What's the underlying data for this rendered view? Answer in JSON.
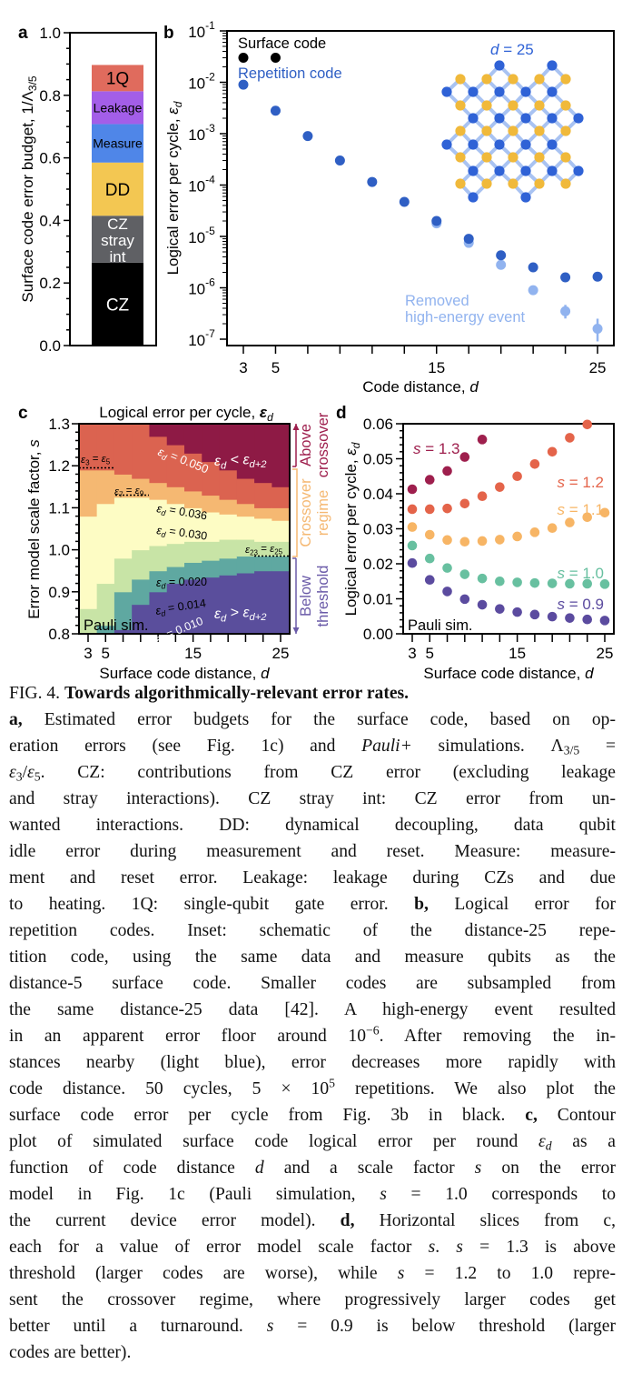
{
  "panel_a": {
    "letter": "a",
    "ylabel": "Surface code error budget, 1/Λ",
    "ylabel_sub": "3/5",
    "yticks": [
      "0.0",
      "0.2",
      "0.4",
      "0.6",
      "0.8",
      "1.0"
    ],
    "segments": [
      {
        "label": [
          "CZ"
        ],
        "from": 0.0,
        "to": 0.265,
        "color": "#000000",
        "text_color": "#ffffff"
      },
      {
        "label": [
          "CZ",
          "stray",
          "int"
        ],
        "from": 0.265,
        "to": 0.415,
        "color": "#5f6064",
        "text_color": "#ffffff"
      },
      {
        "label": [
          "DD"
        ],
        "from": 0.415,
        "to": 0.585,
        "color": "#f3c752",
        "text_color": "#000000"
      },
      {
        "label": [
          "Measure"
        ],
        "from": 0.585,
        "to": 0.708,
        "color": "#4f86e8",
        "text_color": "#000000"
      },
      {
        "label": [
          "Leakage"
        ],
        "from": 0.708,
        "to": 0.813,
        "color": "#a35ee8",
        "text_color": "#000000"
      },
      {
        "label": [
          "1Q"
        ],
        "from": 0.813,
        "to": 0.897,
        "color": "#e06b5d",
        "text_color": "#000000"
      }
    ]
  },
  "panel_b": {
    "letter": "b",
    "ylabel": "Logical error per cycle, ",
    "ylabel_sym": "ε",
    "ylabel_sub": "d",
    "xlabel": "Code distance, ",
    "xlabel_sym": "d",
    "ytick_base": "10",
    "ytick_exps": [
      "-1",
      "-2",
      "-3",
      "-4",
      "-5",
      "-6",
      "-7"
    ],
    "xtick_labels": [
      "3",
      "5",
      "15",
      "25"
    ],
    "legend_surface": "Surface code",
    "legend_repetition": "Repetition code",
    "inset_label_sym": "d",
    "inset_label": " = 25",
    "removed_label": [
      "Removed",
      "high-energy event"
    ],
    "colors": {
      "surface": "#000000",
      "repetition": "#2f5fc4",
      "removed": "#91b3ef",
      "inset_data": "#2f62d6",
      "inset_measure": "#f0b93b",
      "inset_link": "#a9c3f2"
    }
  },
  "panel_c": {
    "letter": "c",
    "title": "Logical error per cycle, ",
    "title_sym": "ε",
    "title_sub": "d",
    "ylabel": "Error model scale factor, ",
    "ylabel_sym": "s",
    "xlabel": "Surface code distance, ",
    "xlabel_sym": "d",
    "yticks": [
      "0.8",
      "0.9",
      "1.0",
      "1.1",
      "1.2",
      "1.3"
    ],
    "xtick_labels": [
      "3",
      "5",
      "15",
      "25"
    ],
    "labels": {
      "eq050": [
        [
          "ε",
          "i"
        ],
        [
          "d",
          "isub"
        ],
        [
          " = 0.050",
          ""
        ]
      ],
      "eq036": [
        [
          "ε",
          "i"
        ],
        [
          "d",
          "isub"
        ],
        [
          " = 0.036",
          ""
        ]
      ],
      "eq030": [
        [
          "ε",
          "i"
        ],
        [
          "d",
          "isub"
        ],
        [
          " = 0.030",
          ""
        ]
      ],
      "eq020": [
        [
          "ε",
          "i"
        ],
        [
          "d",
          "isub"
        ],
        [
          " = 0.020",
          ""
        ]
      ],
      "eq014": [
        [
          "ε",
          "i"
        ],
        [
          "d",
          "isub"
        ],
        [
          " = 0.014",
          ""
        ]
      ],
      "eq010": [
        [
          "ε",
          "i"
        ],
        [
          "d",
          "isub"
        ],
        [
          " = 0.010",
          ""
        ]
      ],
      "e3e5": [
        [
          "ε",
          "i"
        ],
        [
          "3",
          "sub"
        ],
        [
          " = ",
          ""
        ],
        [
          "ε",
          "i"
        ],
        [
          "5",
          "sub"
        ]
      ],
      "e7e9": [
        [
          "ε",
          "i"
        ],
        [
          "7",
          "sub"
        ],
        [
          " = ",
          ""
        ],
        [
          "ε",
          "i"
        ],
        [
          "9",
          "sub"
        ]
      ],
      "e23e25": [
        [
          "ε",
          "i"
        ],
        [
          "23",
          "sub"
        ],
        [
          " = ",
          ""
        ],
        [
          "ε",
          "i"
        ],
        [
          "25",
          "sub"
        ]
      ],
      "lt": [
        [
          "ε",
          "i"
        ],
        [
          "d",
          "isub"
        ],
        [
          " < ",
          ""
        ],
        [
          "ε",
          "i"
        ],
        [
          "d+2",
          "isub"
        ]
      ],
      "gt": [
        [
          "ε",
          "i"
        ],
        [
          "d",
          "isub"
        ],
        [
          " > ",
          ""
        ],
        [
          "ε",
          "i"
        ],
        [
          "d+2",
          "isub"
        ]
      ]
    },
    "pauli": "Pauli sim.",
    "regions": [
      {
        "lines": [
          "Above",
          "crossover"
        ],
        "color": "#9e1f4d"
      },
      {
        "lines": [
          "Crossover",
          "regime"
        ],
        "color": "#f5b872"
      },
      {
        "lines": [
          "Below",
          "threshold"
        ],
        "color": "#6a5aa8"
      }
    ],
    "band_colors": [
      "#5a4e9c",
      "#5fa8a1",
      "#c8e4a6",
      "#fdfcc4",
      "#f5b872",
      "#db6350",
      "#8e1a45"
    ]
  },
  "panel_d": {
    "letter": "d",
    "ylabel": "Logical error per cycle, ",
    "ylabel_sym": "ε",
    "ylabel_sub": "d",
    "xlabel": "Surface code distance, ",
    "xlabel_sym": "d",
    "yticks": [
      "0.00",
      "0.01",
      "0.02",
      "0.03",
      "0.04",
      "0.05",
      "0.06"
    ],
    "xtick_labels": [
      "3",
      "5",
      "15",
      "25"
    ],
    "pauli": "Pauli sim.",
    "series_labels": [
      {
        "sym": "s",
        "text": " = 1.3",
        "color": "#9e1f4d"
      },
      {
        "sym": "s",
        "text": " = 1.2",
        "color": "#e4644a"
      },
      {
        "sym": "s",
        "text": " = 1.1",
        "color": "#f7b565"
      },
      {
        "sym": "s",
        "text": " = 1.0",
        "color": "#68c0a0"
      },
      {
        "sym": "s",
        "text": " = 0.9",
        "color": "#5b4b9f"
      }
    ]
  },
  "chart_data": [
    {
      "panel": "a",
      "type": "bar",
      "stacked": true,
      "ylabel": "Surface code error budget, 1/Λ3/5",
      "ylim": [
        0,
        1.0
      ],
      "categories": [
        "CZ",
        "CZ stray int",
        "DD",
        "Measure",
        "Leakage",
        "1Q"
      ],
      "values": [
        0.265,
        0.15,
        0.17,
        0.123,
        0.105,
        0.084
      ]
    },
    {
      "panel": "b",
      "type": "scatter",
      "yscale": "log",
      "ylim": [
        1e-07,
        0.1
      ],
      "xlabel": "Code distance, d",
      "ylabel": "Logical error per cycle, εd",
      "xticks": [
        3,
        5,
        15,
        25
      ],
      "series": [
        {
          "name": "Surface code",
          "x": [
            3,
            5
          ],
          "y": [
            0.03,
            0.03
          ]
        },
        {
          "name": "Repetition code",
          "x": [
            3,
            5,
            7,
            9,
            11,
            13,
            15,
            17,
            19,
            21,
            23,
            25
          ],
          "y": [
            0.009,
            0.0028,
            0.0009,
            0.0003,
            0.000115,
            4.7e-05,
            2e-05,
            9e-06,
            4.3e-06,
            2.5e-06,
            1.6e-06,
            1.65e-06
          ]
        },
        {
          "name": "Removed high-energy event",
          "x": [
            15,
            17,
            19,
            21,
            23,
            25
          ],
          "y": [
            1.8e-05,
            7.5e-06,
            2.8e-06,
            9e-07,
            3.5e-07,
            1.6e-07
          ]
        }
      ]
    },
    {
      "panel": "c",
      "type": "heatmap",
      "title": "Logical error per cycle, εd",
      "xlabel": "Surface code distance, d",
      "ylabel": "Error model scale factor, s",
      "ylim": [
        0.8,
        1.3
      ],
      "x": [
        3,
        5,
        7,
        9,
        11,
        13,
        15,
        17,
        19,
        21,
        23,
        25
      ],
      "contour_levels": [
        0.01,
        0.014,
        0.02,
        0.03,
        0.036,
        0.05
      ],
      "contour_boundaries_s": [
        [
          0.79,
          0.79,
          0.81,
          0.87,
          0.9,
          0.92,
          0.93,
          0.935,
          0.94,
          0.945,
          0.95,
          0.95
        ],
        [
          0.79,
          0.82,
          0.9,
          0.93,
          0.95,
          0.96,
          0.97,
          0.975,
          0.98,
          0.985,
          0.985,
          0.985
        ],
        [
          0.86,
          0.92,
          0.98,
          1.0,
          1.01,
          1.015,
          1.02,
          1.02,
          1.025,
          1.025,
          1.02,
          1.02
        ],
        [
          1.08,
          1.11,
          1.125,
          1.125,
          1.12,
          1.11,
          1.1,
          1.09,
          1.085,
          1.08,
          1.075,
          1.07
        ],
        [
          1.19,
          1.19,
          1.18,
          1.17,
          1.16,
          1.15,
          1.14,
          1.13,
          1.12,
          1.11,
          1.1,
          1.1
        ],
        [
          1.31,
          1.31,
          1.31,
          1.31,
          1.27,
          1.25,
          1.23,
          1.21,
          1.19,
          1.17,
          1.16,
          1.15
        ]
      ]
    },
    {
      "panel": "d",
      "type": "scatter",
      "ylim": [
        0,
        0.06
      ],
      "xlabel": "Surface code distance, d",
      "ylabel": "Logical error per cycle, εd",
      "xticks": [
        3,
        5,
        15,
        25
      ],
      "series": [
        {
          "name": "s = 1.3",
          "x": [
            3,
            5,
            7,
            9,
            11
          ],
          "y": [
            0.0413,
            0.044,
            0.0465,
            0.0505,
            0.0555
          ]
        },
        {
          "name": "s = 1.2",
          "x": [
            3,
            5,
            7,
            9,
            11,
            13,
            15,
            17,
            19,
            21,
            23
          ],
          "y": [
            0.0356,
            0.0356,
            0.0358,
            0.0372,
            0.0393,
            0.0419,
            0.045,
            0.0485,
            0.052,
            0.056,
            0.0598
          ]
        },
        {
          "name": "s = 1.1",
          "x": [
            3,
            5,
            7,
            9,
            11,
            13,
            15,
            17,
            19,
            21,
            23,
            25
          ],
          "y": [
            0.0305,
            0.0283,
            0.0268,
            0.0263,
            0.0265,
            0.0269,
            0.0278,
            0.029,
            0.0302,
            0.0318,
            0.0333,
            0.0346
          ]
        },
        {
          "name": "s = 1.0",
          "x": [
            3,
            5,
            7,
            9,
            11,
            13,
            15,
            17,
            19,
            21,
            23,
            25
          ],
          "y": [
            0.0252,
            0.0215,
            0.0188,
            0.017,
            0.0158,
            0.015,
            0.0147,
            0.0145,
            0.0144,
            0.0143,
            0.0143,
            0.0142
          ]
        },
        {
          "name": "s = 0.9",
          "x": [
            3,
            5,
            7,
            9,
            11,
            13,
            15,
            17,
            19,
            21,
            23,
            25
          ],
          "y": [
            0.0202,
            0.0154,
            0.0121,
            0.0099,
            0.0083,
            0.0071,
            0.0062,
            0.0055,
            0.0049,
            0.0045,
            0.0041,
            0.0038
          ]
        }
      ]
    }
  ],
  "caption": [
    [
      [
        "FIG. 4.   ",
        ""
      ],
      [
        "Towards algorithmically-relevant error rates.",
        "b"
      ]
    ],
    [
      [
        "a,",
        "b"
      ],
      [
        " Estimated error budgets for the surface code, based on op-",
        ""
      ]
    ],
    [
      [
        "eration errors (see Fig. 1c) and ",
        ""
      ],
      [
        "Pauli+",
        "i"
      ],
      [
        " simulations.  Λ",
        ""
      ],
      [
        "3/5",
        "sub"
      ],
      [
        " =",
        ""
      ]
    ],
    [
      [
        "ε",
        "i"
      ],
      [
        "3",
        "sub"
      ],
      [
        "/",
        ""
      ],
      [
        "ε",
        "i"
      ],
      [
        "5",
        "sub"
      ],
      [
        ".  CZ: contributions from CZ error (excluding leakage",
        ""
      ]
    ],
    [
      [
        "and stray interactions).  CZ stray int:  CZ error from un-",
        ""
      ]
    ],
    [
      [
        "wanted interactions.  DD: dynamical decoupling, data qubit",
        ""
      ]
    ],
    [
      [
        "idle error during measurement and reset. Measure: measure-",
        ""
      ]
    ],
    [
      [
        "ment and reset error.  Leakage: leakage during CZs and due",
        ""
      ]
    ],
    [
      [
        "to heating.  1Q: single-qubit gate error.  ",
        ""
      ],
      [
        "b,",
        "b"
      ],
      [
        " Logical error for",
        ""
      ]
    ],
    [
      [
        "repetition codes.  Inset: schematic of the distance-25 repe-",
        ""
      ]
    ],
    [
      [
        "tition code, using the same data and measure qubits as the",
        ""
      ]
    ],
    [
      [
        "distance-5 surface code.  Smaller codes are subsampled from",
        ""
      ]
    ],
    [
      [
        "the same distance-25 data [42].  A high-energy event resulted",
        ""
      ]
    ],
    [
      [
        "in an apparent error floor around 10",
        ""
      ],
      [
        "−6",
        "sup"
      ],
      [
        ". After removing the in-",
        ""
      ]
    ],
    [
      [
        "stances nearby (light blue), error decreases more rapidly with",
        ""
      ]
    ],
    [
      [
        "code distance.  50 cycles, 5 × 10",
        ""
      ],
      [
        "5",
        "sup"
      ],
      [
        " repetitions. We also plot the",
        ""
      ]
    ],
    [
      [
        "surface code error per cycle from Fig. 3b in black.  ",
        ""
      ],
      [
        "c,",
        "b"
      ],
      [
        " Contour",
        ""
      ]
    ],
    [
      [
        "plot of simulated surface code logical error per round ",
        ""
      ],
      [
        "ε",
        "i"
      ],
      [
        "d",
        "isub"
      ],
      [
        " as a",
        ""
      ]
    ],
    [
      [
        "function of code distance ",
        ""
      ],
      [
        "d",
        "i"
      ],
      [
        " and a scale factor ",
        ""
      ],
      [
        "s",
        "i"
      ],
      [
        " on the error",
        ""
      ]
    ],
    [
      [
        "model in Fig. 1c (Pauli simulation, ",
        ""
      ],
      [
        "s",
        "i"
      ],
      [
        " = 1.0 corresponds to",
        ""
      ]
    ],
    [
      [
        "the current device error model).  ",
        ""
      ],
      [
        "d,",
        "b"
      ],
      [
        " Horizontal slices from c,",
        ""
      ]
    ],
    [
      [
        "each for a value of error model scale factor ",
        ""
      ],
      [
        "s",
        "i"
      ],
      [
        ".  ",
        ""
      ],
      [
        "s",
        "i"
      ],
      [
        " = 1.3 is above",
        ""
      ]
    ],
    [
      [
        "threshold (larger codes are worse), while ",
        ""
      ],
      [
        "s",
        "i"
      ],
      [
        " = 1.2 to 1.0 repre-",
        ""
      ]
    ],
    [
      [
        "sent the crossover regime, where progressively larger codes get",
        ""
      ]
    ],
    [
      [
        "better until a turnaround.  ",
        ""
      ],
      [
        "s",
        "i"
      ],
      [
        " = 0.9 is below threshold (larger",
        ""
      ]
    ],
    [
      [
        "codes are better).",
        ""
      ]
    ]
  ]
}
